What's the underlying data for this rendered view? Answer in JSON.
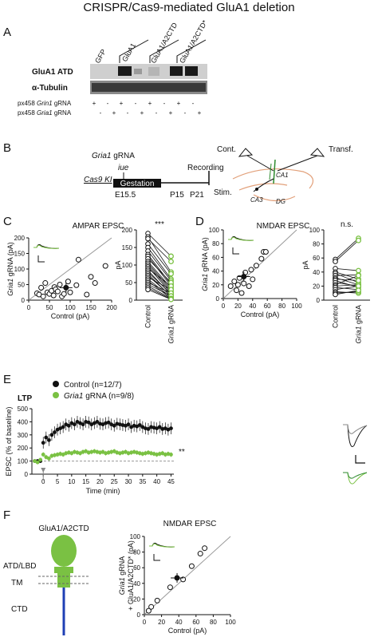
{
  "figure_title": "CRISPR/Cas9-mediated GluA1 deletion",
  "colors": {
    "green": "#7ac143",
    "dark_green": "#2e8b2e",
    "blue": "#1f3fb5",
    "gray": "#888888"
  },
  "panelA": {
    "letter": "A",
    "lanes": [
      "GFP",
      "GluA1",
      "GluA1/A2CTD",
      "GluA1/A2CTD*"
    ],
    "blot_labels": [
      "GluA1 ATD",
      "α-Tubulin"
    ],
    "row1_label": "px458 Grin1 gRNA",
    "row1_label_a": "px458 ",
    "row1_label_b": "Grin1",
    "row1_label_c": " gRNA",
    "row2_label_a": "px458 ",
    "row2_label_b": "Gria1",
    "row2_label_c": " gRNA",
    "row1_signs": [
      "+",
      "-",
      "+",
      "-",
      "+",
      "-",
      "+",
      "-"
    ],
    "row2_signs": [
      "-",
      "+",
      "-",
      "+",
      "-",
      "+",
      "-",
      "+"
    ]
  },
  "panelB": {
    "letter": "B",
    "gria1_a": "Gria1",
    "gria1_b": " gRNA",
    "cas9": "Cas9 KI",
    "iue": "iue",
    "gestation": "Gestation",
    "recording": "Recording",
    "e155": "E15.5",
    "p15": "P15",
    "p21": "P21",
    "cont": "Cont.",
    "transf": "Transf.",
    "stim": "Stim.",
    "ca1": "CA1",
    "ca3": "CA3",
    "dg": "DG"
  },
  "panelC": {
    "letter": "C",
    "title": "AMPAR EPSC",
    "ylabel_a": "Gria1",
    "ylabel_b": " gRNA (pA)",
    "xlabel": "Control (pA)",
    "xticks": [
      "0",
      "50",
      "100",
      "150",
      "200"
    ],
    "yticks": [
      "0",
      "50",
      "100",
      "150",
      "200"
    ],
    "paired_yticks": [
      "0",
      "50",
      "100",
      "150",
      "200"
    ],
    "paired_ylabel": "pA",
    "paired_x1": "Control",
    "paired_x2_a": "Gria1",
    "paired_x2_b": " gRNA",
    "significance": "***"
  },
  "panelD": {
    "letter": "D",
    "title": "NMDAR EPSC",
    "ylabel_a": "Gria1",
    "ylabel_b": " gRNA (pA)",
    "xlabel": "Control (pA)",
    "xticks": [
      "0",
      "20",
      "40",
      "60",
      "80",
      "100"
    ],
    "yticks": [
      "0",
      "20",
      "40",
      "60",
      "80",
      "100"
    ],
    "paired_yticks": [
      "0",
      "20",
      "40",
      "60",
      "80",
      "100"
    ],
    "paired_ylabel": "pA",
    "paired_x1": "Control",
    "paired_x2_a": "Gria1",
    "paired_x2_b": " gRNA",
    "significance": "n.s."
  },
  "panelE": {
    "letter": "E",
    "ltp": "LTP",
    "legend1": "Control (n=12/7)",
    "legend2_a": "Gria1",
    "legend2_b": " gRNA (n=9/8)",
    "ylabel": "EPSC (% of baseline)",
    "xlabel": "Time (min)",
    "xticks": [
      "0",
      "5",
      "10",
      "15",
      "20",
      "25",
      "30",
      "35",
      "40",
      "45"
    ],
    "yticks": [
      "0",
      "100",
      "200",
      "300",
      "400",
      "500"
    ],
    "significance": "**"
  },
  "panelF": {
    "letter": "F",
    "construct": "GluA1/A2CTD",
    "domain1": "ATD/LBD",
    "domain2": "TM",
    "domain3": "CTD",
    "title": "NMDAR EPSC",
    "ylabel1_a": "Gria1",
    "ylabel1_b": " gRNA",
    "ylabel2": "+ GluA1/A2CTD* (pA)",
    "xlabel": "Control (pA)",
    "xticks": [
      "0",
      "20",
      "40",
      "60",
      "80",
      "100"
    ],
    "yticks": [
      "0",
      "20",
      "40",
      "60",
      "80",
      "100"
    ]
  },
  "chart_data": [
    {
      "type": "scatter",
      "title": "AMPAR EPSC",
      "xlabel": "Control (pA)",
      "ylabel": "Gria1 gRNA (pA)",
      "xlim": [
        0,
        200
      ],
      "ylim": [
        0,
        200
      ],
      "points": [
        [
          20,
          22
        ],
        [
          25,
          18
        ],
        [
          30,
          40
        ],
        [
          35,
          12
        ],
        [
          40,
          55
        ],
        [
          45,
          25
        ],
        [
          50,
          20
        ],
        [
          55,
          30
        ],
        [
          60,
          15
        ],
        [
          62,
          42
        ],
        [
          65,
          35
        ],
        [
          70,
          28
        ],
        [
          75,
          50
        ],
        [
          80,
          12
        ],
        [
          85,
          20
        ],
        [
          95,
          60
        ],
        [
          100,
          25
        ],
        [
          115,
          48
        ],
        [
          120,
          130
        ],
        [
          140,
          18
        ],
        [
          150,
          75
        ],
        [
          160,
          55
        ],
        [
          185,
          110
        ]
      ],
      "mean": [
        90,
        40
      ]
    },
    {
      "type": "line",
      "title": "AMPAR EPSC paired",
      "ylabel": "pA",
      "categories": [
        "Control",
        "Gria1 gRNA"
      ],
      "ylim": [
        0,
        200
      ],
      "pairs": [
        [
          190,
          125
        ],
        [
          180,
          80
        ],
        [
          175,
          110
        ],
        [
          160,
          75
        ],
        [
          150,
          60
        ],
        [
          140,
          55
        ],
        [
          130,
          45
        ],
        [
          125,
          40
        ],
        [
          118,
          50
        ],
        [
          110,
          35
        ],
        [
          105,
          30
        ],
        [
          100,
          25
        ],
        [
          95,
          20
        ],
        [
          90,
          40
        ],
        [
          85,
          15
        ],
        [
          80,
          18
        ],
        [
          75,
          10
        ],
        [
          70,
          12
        ],
        [
          65,
          30
        ],
        [
          60,
          8
        ],
        [
          55,
          5
        ],
        [
          50,
          20
        ],
        [
          45,
          12
        ],
        [
          40,
          5
        ],
        [
          35,
          3
        ],
        [
          30,
          2
        ]
      ]
    },
    {
      "type": "scatter",
      "title": "NMDAR EPSC",
      "xlabel": "Control (pA)",
      "ylabel": "Gria1 gRNA (pA)",
      "xlim": [
        0,
        100
      ],
      "ylim": [
        0,
        100
      ],
      "points": [
        [
          10,
          18
        ],
        [
          15,
          25
        ],
        [
          18,
          12
        ],
        [
          20,
          20
        ],
        [
          22,
          30
        ],
        [
          25,
          8
        ],
        [
          28,
          22
        ],
        [
          30,
          38
        ],
        [
          35,
          18
        ],
        [
          38,
          42
        ],
        [
          40,
          28
        ],
        [
          45,
          48
        ],
        [
          52,
          58
        ],
        [
          55,
          68
        ],
        [
          58,
          68
        ]
      ],
      "mean": [
        28,
        32
      ]
    },
    {
      "type": "line",
      "title": "NMDAR EPSC paired",
      "ylabel": "pA",
      "categories": [
        "Control",
        "Gria1 gRNA"
      ],
      "ylim": [
        0,
        100
      ],
      "pairs": [
        [
          58,
          88
        ],
        [
          55,
          85
        ],
        [
          45,
          42
        ],
        [
          40,
          30
        ],
        [
          38,
          25
        ],
        [
          35,
          36
        ],
        [
          32,
          22
        ],
        [
          30,
          28
        ],
        [
          28,
          18
        ],
        [
          25,
          20
        ],
        [
          22,
          35
        ],
        [
          20,
          22
        ],
        [
          18,
          15
        ],
        [
          15,
          20
        ],
        [
          12,
          10
        ],
        [
          10,
          12
        ],
        [
          8,
          14
        ]
      ]
    },
    {
      "type": "line",
      "title": "LTP",
      "xlabel": "Time (min)",
      "ylabel": "EPSC (% of baseline)",
      "xlim": [
        -4,
        46
      ],
      "ylim": [
        0,
        500
      ],
      "series": [
        {
          "name": "Control (n=12/7)",
          "x": [
            -3,
            -2,
            -1,
            0,
            1,
            2,
            3,
            4,
            5,
            6,
            7,
            8,
            9,
            10,
            11,
            12,
            13,
            14,
            15,
            16,
            17,
            18,
            19,
            20,
            21,
            22,
            23,
            24,
            25,
            26,
            27,
            28,
            29,
            30,
            31,
            32,
            33,
            34,
            35,
            36,
            37,
            38,
            39,
            40,
            41,
            42,
            43,
            44,
            45
          ],
          "y": [
            100,
            100,
            100,
            240,
            280,
            260,
            300,
            320,
            340,
            350,
            360,
            380,
            370,
            390,
            380,
            400,
            390,
            380,
            400,
            395,
            380,
            390,
            400,
            385,
            380,
            390,
            395,
            380,
            370,
            385,
            380,
            375,
            370,
            380,
            360,
            370,
            365,
            375,
            360,
            350,
            345,
            360,
            355,
            350,
            360,
            345,
            350,
            340,
            350
          ]
        },
        {
          "name": "Gria1 gRNA (n=9/8)",
          "x": [
            -3,
            -2,
            -1,
            0,
            1,
            2,
            3,
            4,
            5,
            6,
            7,
            8,
            9,
            10,
            11,
            12,
            13,
            14,
            15,
            16,
            17,
            18,
            19,
            20,
            21,
            22,
            23,
            24,
            25,
            26,
            27,
            28,
            29,
            30,
            31,
            32,
            33,
            34,
            35,
            36,
            37,
            38,
            39,
            40,
            41,
            42,
            43,
            44,
            45
          ],
          "y": [
            100,
            90,
            110,
            150,
            130,
            120,
            140,
            145,
            150,
            155,
            150,
            160,
            165,
            160,
            170,
            165,
            160,
            170,
            175,
            165,
            170,
            175,
            170,
            165,
            170,
            160,
            165,
            170,
            175,
            165,
            160,
            165,
            170,
            160,
            165,
            170,
            165,
            160,
            155,
            160,
            165,
            160,
            155,
            150,
            155,
            160,
            150,
            155,
            150
          ]
        }
      ]
    },
    {
      "type": "scatter",
      "title": "NMDAR EPSC",
      "xlabel": "Control (pA)",
      "ylabel": "Gria1 gRNA + GluA1/A2CTD* (pA)",
      "xlim": [
        0,
        100
      ],
      "ylim": [
        0,
        100
      ],
      "points": [
        [
          5,
          5
        ],
        [
          8,
          10
        ],
        [
          15,
          18
        ],
        [
          30,
          35
        ],
        [
          45,
          45
        ],
        [
          55,
          62
        ],
        [
          65,
          78
        ],
        [
          70,
          85
        ]
      ],
      "mean": [
        38,
        47
      ]
    }
  ]
}
